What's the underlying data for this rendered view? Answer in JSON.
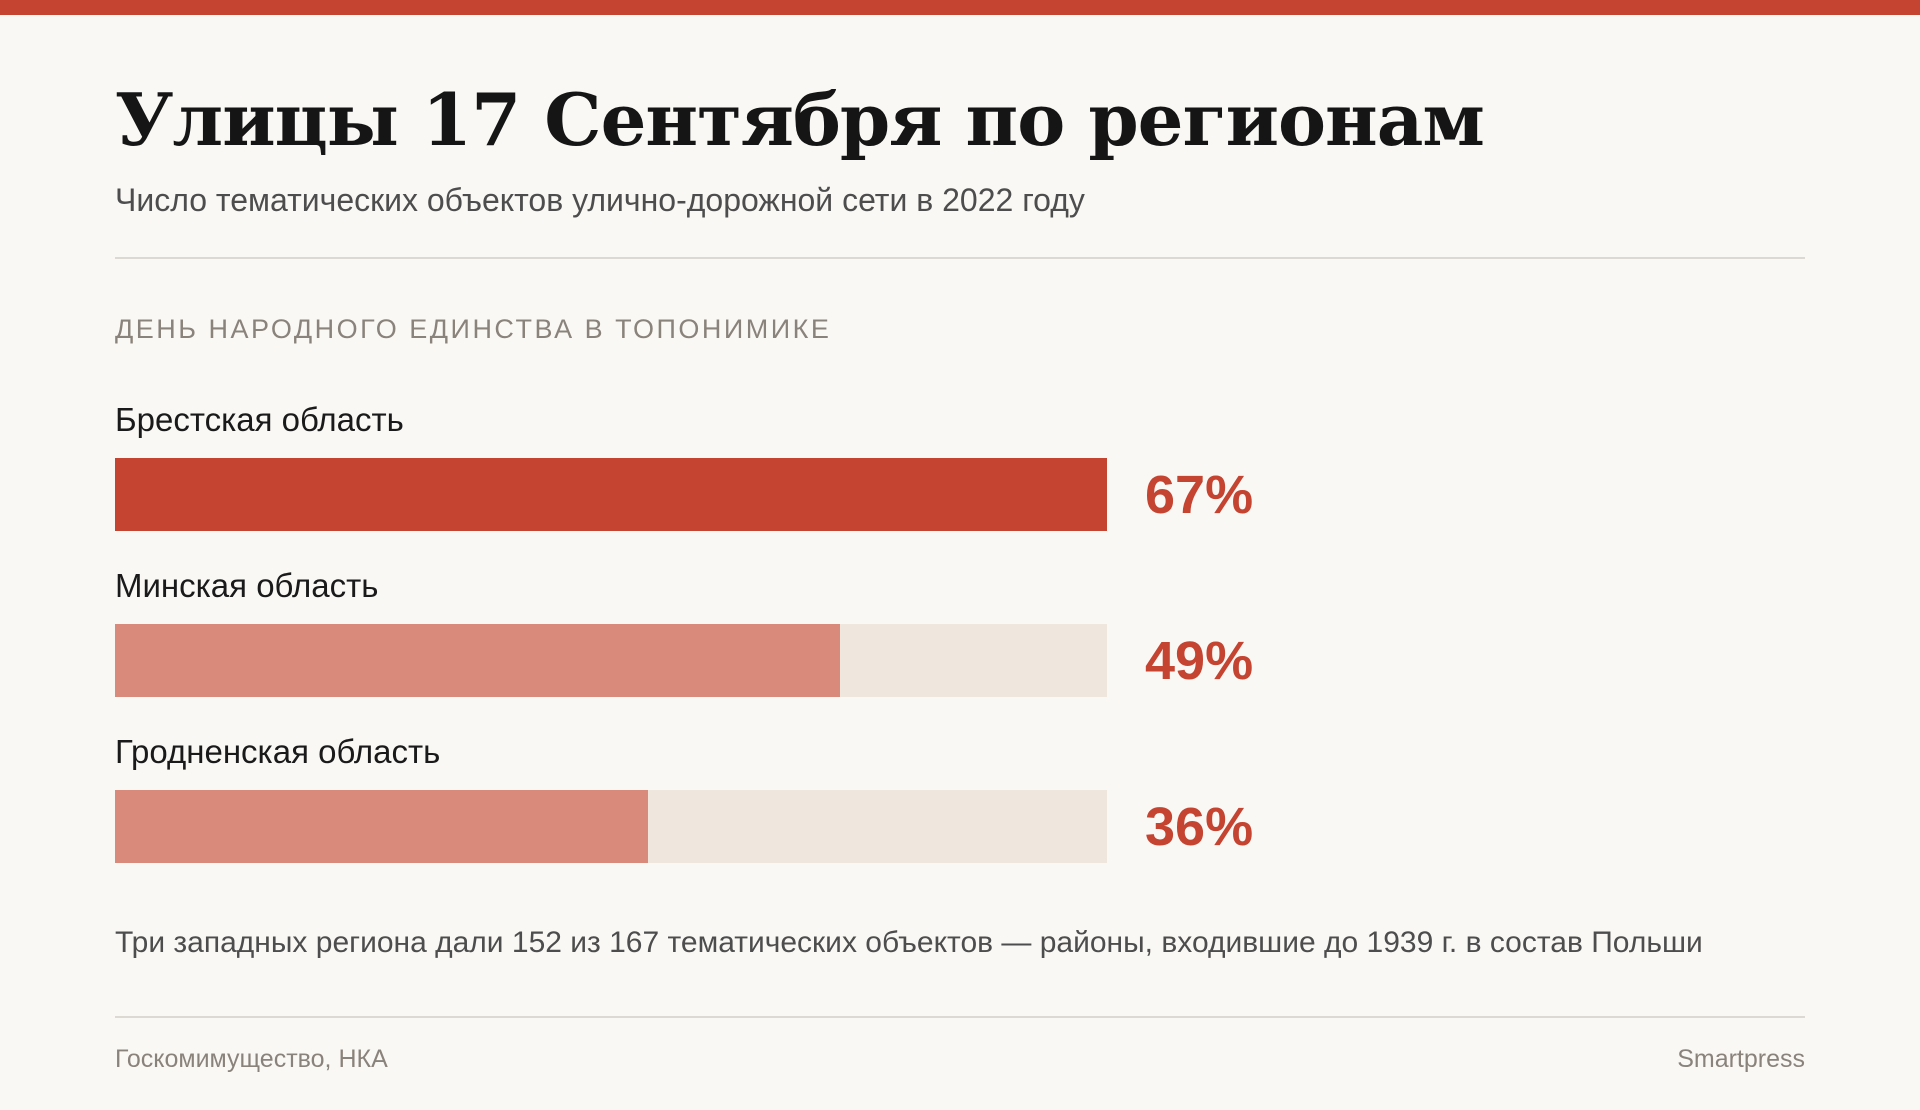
{
  "header": {
    "title": "Улицы 17 Сентября по регионам",
    "subtitle": "Число тематических объектов улично-дорожной сети в 2022 году"
  },
  "section_label": "ДЕНЬ НАРОДНОГО ЕДИНСТВА В ТОПОНИМИКЕ",
  "chart_data": {
    "type": "bar",
    "orientation": "horizontal",
    "categories": [
      "Брестская область",
      "Минская область",
      "Гродненская область"
    ],
    "values": [
      67,
      49,
      36
    ],
    "value_labels": [
      "67%",
      "49%",
      "36%"
    ],
    "unit": "%",
    "xlim": [
      0,
      67
    ],
    "highlight_index": 0,
    "title": "Улицы 17 Сентября по регионам",
    "subtitle": "Число тематических объектов улично-дорожной сети в 2022 году",
    "grid": false,
    "legend": "none"
  },
  "note": "Три западных региона дали 152 из 167 тематических объектов — районы, входившие до 1939 г. в состав Польши",
  "footer": {
    "source": "Госкомимущество, НКА",
    "brand": "Smartpress"
  },
  "colors": {
    "accent": "#c44431",
    "bar_highlight": "#c44431",
    "bar_regular": "#da8a7a",
    "track": "#efe7de",
    "value_text": "#c44431",
    "background": "#faf8f4"
  }
}
